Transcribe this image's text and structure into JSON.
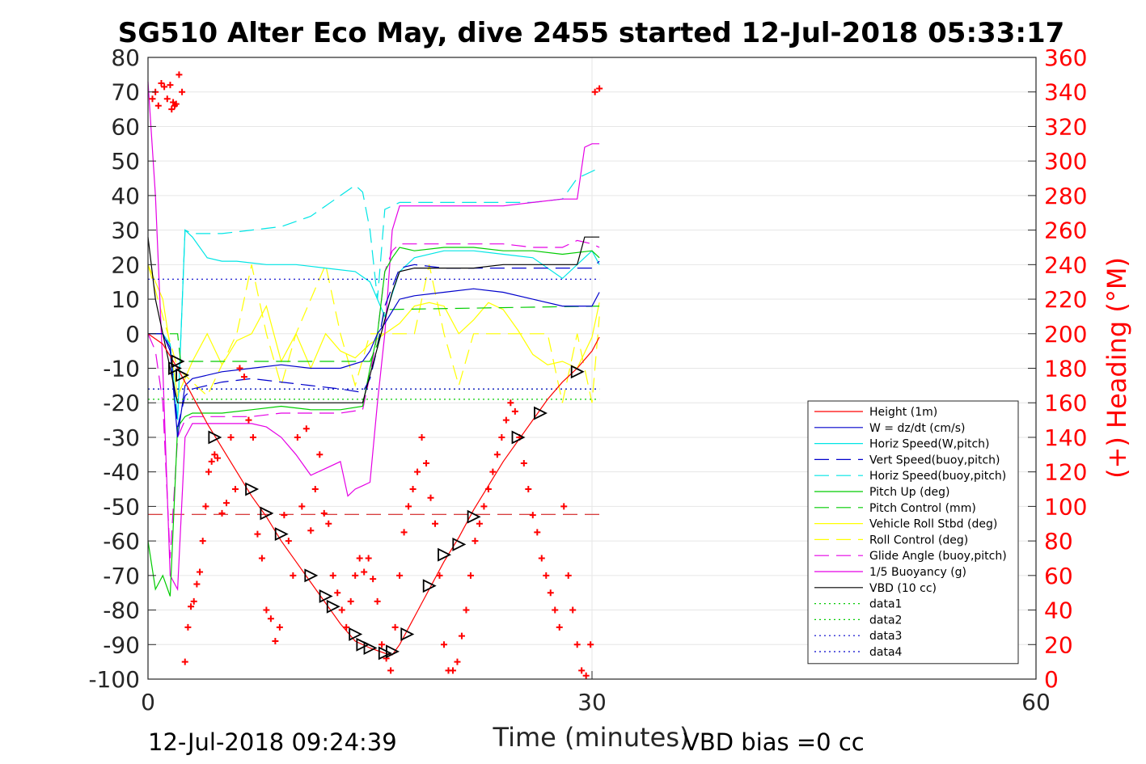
{
  "chart_data": {
    "type": "line",
    "title": "SG510 Alter Eco May, dive 2455 started 12-Jul-2018 05:33:17",
    "xlabel": "Time (minutes)",
    "ylabel_right": "(+) Heading (°M)",
    "xlim": [
      0,
      60
    ],
    "ylim": [
      -100,
      80
    ],
    "ylim_right": [
      0,
      360
    ],
    "xticks": [
      "0",
      "30",
      "60"
    ],
    "yticks": [
      "80",
      "70",
      "60",
      "50",
      "40",
      "30",
      "20",
      "10",
      "0",
      "-10",
      "-20",
      "-30",
      "-40",
      "-50",
      "-60",
      "-70",
      "-80",
      "-90",
      "-100"
    ],
    "yticks_right": [
      "360",
      "340",
      "320",
      "300",
      "280",
      "260",
      "240",
      "220",
      "200",
      "180",
      "160",
      "140",
      "120",
      "100",
      "80",
      "60",
      "40",
      "20",
      "0"
    ],
    "grid": true,
    "legend_position": "lower-right",
    "footer_left": "12-Jul-2018 09:24:39",
    "footer_right": "VBD bias =0 cc",
    "colors": {
      "red": "#ff0000",
      "blue": "#0000cc",
      "cyan": "#00e5e5",
      "green": "#00cc00",
      "yellow": "#ffff00",
      "magenta": "#e500e5",
      "black": "#000000",
      "axis_right": "#ff0000"
    },
    "series": [
      {
        "name": "Height (1m)",
        "color": "#ff0000",
        "dash": "solid",
        "x": [
          0,
          1,
          2,
          3,
          4,
          5,
          6,
          7,
          8,
          9,
          10,
          11,
          12,
          13,
          14,
          15,
          16,
          16.5,
          17,
          18,
          19,
          20,
          21,
          22,
          23,
          24,
          25,
          26,
          27,
          28,
          29,
          30,
          30.5
        ],
        "y": [
          0,
          -3,
          -10,
          -18,
          -26,
          -33,
          -40,
          -47,
          -53,
          -60,
          -66,
          -72,
          -78,
          -84,
          -89,
          -91,
          -92.5,
          -93,
          -90,
          -82,
          -74,
          -66,
          -59,
          -51,
          -44,
          -37,
          -31,
          -25,
          -19,
          -14,
          -10,
          -5,
          -1
        ]
      },
      {
        "name": "W = dz/dt (cm/s)",
        "color": "#0000cc",
        "dash": "solid",
        "x": [
          0,
          1,
          1.5,
          2,
          2.5,
          3,
          5,
          7,
          9,
          11,
          13,
          14.5,
          15,
          15.5,
          16,
          17,
          18,
          20,
          22,
          24,
          26,
          28,
          30,
          30.5
        ],
        "y": [
          0,
          0,
          -5,
          -30,
          -15,
          -13,
          -11,
          -10,
          -9,
          -10,
          -10,
          -8,
          -5,
          0,
          3,
          10,
          11,
          12,
          13,
          12,
          10,
          8,
          8,
          12
        ]
      },
      {
        "name": "Horiz Speed(W,pitch)",
        "color": "#00e5e5",
        "dash": "solid",
        "x": [
          0,
          1,
          1.5,
          2,
          2.5,
          3,
          4,
          5,
          6,
          8,
          10,
          12,
          14,
          15,
          15.5,
          16,
          17,
          18,
          20,
          22,
          24,
          26,
          28,
          30,
          30.5
        ],
        "y": [
          0,
          0,
          -3,
          -25,
          30,
          28,
          22,
          21,
          21,
          20,
          20,
          19,
          18,
          15,
          10,
          5,
          18,
          22,
          24,
          24,
          23,
          22,
          16,
          24,
          20
        ]
      },
      {
        "name": "Vert Speed(buoy,pitch)",
        "color": "#0000cc",
        "dash": "dash",
        "x": [
          0,
          1,
          1.5,
          2,
          2.5,
          3,
          5,
          7,
          9,
          11,
          13,
          14.5,
          15,
          15.5,
          16,
          17,
          18,
          20,
          22,
          24,
          26,
          28,
          30,
          30.5
        ],
        "y": [
          0,
          0,
          -4,
          -27,
          -18,
          -16,
          -14,
          -13,
          -14,
          -15,
          -16,
          -17,
          -13,
          -4,
          8,
          19,
          20,
          19,
          19,
          19,
          19,
          19,
          19,
          21
        ]
      },
      {
        "name": "Horiz Speed(buoy,pitch)",
        "color": "#00e5e5",
        "dash": "dash",
        "x": [
          0,
          1,
          1.5,
          2,
          2.5,
          3,
          5,
          7,
          9,
          11,
          12,
          13,
          14,
          14.5,
          15,
          15.5,
          16,
          17,
          18,
          20,
          22,
          24,
          26,
          28,
          29,
          30,
          30.5
        ],
        "y": [
          0,
          0,
          -3,
          -25,
          30,
          29,
          29,
          30,
          31,
          34,
          37,
          40,
          43,
          41,
          30,
          10,
          36,
          38,
          38,
          38,
          38,
          38,
          38,
          39,
          45,
          47,
          48
        ]
      },
      {
        "name": "Pitch Up (deg)",
        "color": "#00cc00",
        "dash": "solid",
        "x": [
          0,
          0.5,
          1,
          1.5,
          2,
          2.5,
          3,
          5,
          7,
          9,
          11,
          13,
          14.5,
          15,
          15.5,
          16,
          16.5,
          17,
          18,
          20,
          22,
          24,
          26,
          28,
          30,
          30.5
        ],
        "y": [
          -60,
          -74,
          -70,
          -76,
          -27,
          -24,
          -23,
          -23,
          -22,
          -21,
          -22,
          -22,
          -21,
          -10,
          0,
          18,
          22,
          25,
          24,
          25,
          25,
          24,
          24,
          23,
          24,
          22
        ]
      },
      {
        "name": "Pitch Control (mm)",
        "color": "#00cc00",
        "dash": "dash",
        "x": [
          0,
          2,
          2.2,
          15,
          15.5,
          16,
          30.5
        ],
        "y": [
          0,
          0,
          -8,
          -8,
          -3,
          7,
          8
        ]
      },
      {
        "name": "Vehicle Roll Stbd (deg)",
        "color": "#ffff00",
        "dash": "solid",
        "x": [
          0,
          1,
          2,
          3,
          4,
          5,
          6,
          7,
          8,
          9,
          10,
          11,
          12,
          13,
          14,
          15,
          16,
          17,
          18,
          19,
          20,
          21,
          22,
          23,
          24,
          25,
          26,
          27,
          28,
          29,
          30,
          30.5
        ],
        "y": [
          20,
          10,
          -18,
          -8,
          0,
          -9,
          -2,
          0,
          8,
          -8,
          0,
          -10,
          0,
          -5,
          -7,
          -3,
          0,
          3,
          8,
          9,
          8,
          0,
          4,
          9,
          7,
          1,
          -6,
          -9,
          -8,
          -10,
          -1,
          9
        ]
      },
      {
        "name": "Roll Control (deg)",
        "color": "#ffff00",
        "dash": "dash",
        "x": [
          0,
          2,
          4,
          6,
          7,
          8,
          9,
          10,
          12,
          13,
          14,
          15,
          16,
          18,
          19,
          20,
          21,
          22,
          24,
          25,
          26,
          27,
          28,
          29,
          30,
          30.5
        ],
        "y": [
          20,
          -10,
          -18,
          0,
          20,
          0,
          -15,
          0,
          20,
          0,
          -15,
          0,
          0,
          0,
          20,
          0,
          -15,
          0,
          0,
          0,
          0,
          0,
          -20,
          0,
          -20,
          5
        ]
      },
      {
        "name": "Glide Angle (buoy,pitch)",
        "color": "#e500e5",
        "dash": "dash",
        "x": [
          0,
          0.5,
          1,
          1.5,
          2,
          2.5,
          3,
          5,
          7,
          9,
          11,
          13,
          14.5,
          15,
          15.5,
          16,
          16.5,
          17,
          18,
          20,
          22,
          24,
          26,
          28,
          29,
          30,
          30.5
        ],
        "y": [
          0,
          -5,
          -20,
          -65,
          -30,
          -25,
          -24,
          -24,
          -24,
          -23,
          -23,
          -23,
          -22,
          -12,
          0,
          18,
          24,
          26,
          26,
          26,
          26,
          26,
          25,
          25,
          27,
          26,
          25
        ]
      },
      {
        "name": "1/5 Buoyancy (g)",
        "color": "#e500e5",
        "dash": "solid",
        "x": [
          0,
          0.5,
          1,
          1.5,
          2,
          2.5,
          3,
          5,
          7,
          8,
          9,
          10,
          11,
          12,
          13,
          13.5,
          14,
          14.5,
          15,
          15.5,
          16,
          16.5,
          17,
          18,
          20,
          22,
          24,
          26,
          28,
          29,
          29.5,
          30,
          30.5
        ],
        "y": [
          73,
          40,
          -10,
          -70,
          -74,
          -30,
          -26,
          -26,
          -26,
          -27,
          -30,
          -35,
          -41,
          -39,
          -37,
          -47,
          -45,
          -44,
          -43,
          -20,
          0,
          30,
          37,
          37,
          37,
          37,
          37,
          38,
          39,
          39,
          54,
          55,
          55
        ]
      },
      {
        "name": "VBD (10 cc)",
        "color": "#000000",
        "dash": "solid",
        "x": [
          0,
          0.5,
          1,
          1.5,
          2,
          2.5,
          3,
          5,
          10,
          14.5,
          15,
          15.5,
          16,
          16.5,
          17,
          18,
          20,
          22,
          24,
          26,
          28,
          29,
          29.5,
          30.5
        ],
        "y": [
          28,
          10,
          0,
          -10,
          -20,
          -20,
          -20,
          -20,
          -20,
          -20,
          -12,
          -4,
          4,
          12,
          18,
          19,
          19,
          19,
          20,
          20,
          20,
          20,
          28,
          28
        ]
      },
      {
        "name": "data1",
        "color": "#00cc00",
        "dash": "dot",
        "x": [
          0,
          30.5
        ],
        "y": [
          -19,
          -19
        ]
      },
      {
        "name": "data2",
        "color": "#00cc00",
        "dash": "dot",
        "x": [
          0,
          30.5
        ],
        "y": [
          -16,
          -16
        ]
      },
      {
        "name": "data3",
        "color": "#0000cc",
        "dash": "dot",
        "x": [
          0,
          30.5
        ],
        "y": [
          15.8,
          15.8
        ]
      },
      {
        "name": "data4",
        "color": "#0000cc",
        "dash": "dot",
        "x": [
          0,
          30.5
        ],
        "y": [
          -16,
          -16
        ]
      }
    ],
    "reference_line": {
      "color": "#cc0000",
      "dash": "dash",
      "y": -52.3,
      "x": [
        0,
        30.5
      ]
    },
    "heading_points": {
      "color": "#ff0000",
      "axis": "right",
      "x": [
        0.3,
        0.5,
        0.7,
        0.9,
        1.1,
        1.3,
        1.5,
        1.6,
        1.7,
        1.8,
        1.9,
        2.1,
        2.3,
        2.5,
        2.7,
        2.9,
        3.1,
        3.3,
        3.5,
        3.7,
        3.9,
        4.1,
        4.3,
        4.5,
        4.7,
        5.0,
        5.3,
        5.6,
        5.9,
        6.2,
        6.5,
        6.8,
        7.1,
        7.4,
        7.7,
        8.0,
        8.3,
        8.6,
        8.9,
        9.2,
        9.5,
        9.8,
        10.1,
        10.4,
        10.7,
        11.0,
        11.3,
        11.6,
        11.9,
        12.2,
        12.5,
        12.8,
        13.1,
        13.4,
        13.7,
        14.0,
        14.3,
        14.6,
        14.9,
        15.2,
        15.5,
        15.8,
        16.1,
        16.4,
        16.7,
        17.0,
        17.3,
        17.6,
        17.9,
        18.2,
        18.5,
        18.8,
        19.1,
        19.4,
        19.7,
        20.0,
        20.3,
        20.6,
        20.9,
        21.2,
        21.5,
        21.8,
        22.1,
        22.4,
        22.7,
        23.0,
        23.3,
        23.6,
        23.9,
        24.2,
        24.5,
        24.8,
        25.1,
        25.4,
        25.7,
        26.0,
        26.3,
        26.6,
        26.9,
        27.2,
        27.5,
        27.8,
        28.1,
        28.4,
        28.7,
        29.0,
        29.3,
        29.6,
        29.9,
        30.2,
        30.5
      ],
      "y": [
        336,
        340,
        332,
        345,
        343,
        336,
        344,
        330,
        334,
        332,
        333,
        350,
        340,
        10,
        30,
        42,
        45,
        55,
        62,
        80,
        100,
        120,
        126,
        130,
        128,
        96,
        102,
        140,
        110,
        180,
        175,
        150,
        140,
        84,
        70,
        40,
        35,
        22,
        30,
        95,
        80,
        60,
        140,
        100,
        145,
        86,
        110,
        130,
        96,
        90,
        60,
        50,
        40,
        30,
        45,
        60,
        70,
        62,
        70,
        58,
        45,
        20,
        12,
        5,
        30,
        60,
        85,
        100,
        110,
        120,
        140,
        125,
        105,
        90,
        60,
        20,
        5,
        5,
        10,
        25,
        40,
        60,
        80,
        90,
        100,
        110,
        120,
        130,
        140,
        150,
        160,
        155,
        140,
        125,
        110,
        95,
        85,
        70,
        60,
        50,
        40,
        30,
        100,
        60,
        40,
        20,
        5,
        2,
        20,
        340,
        342
      ]
    },
    "markers": {
      "color": "#000000",
      "shape": "triangle",
      "x": [
        1.8,
        2.0,
        2.3,
        4.5,
        7.0,
        8.0,
        9.0,
        11.0,
        12.0,
        12.5,
        14.0,
        14.5,
        15.0,
        16.0,
        16.5,
        17.5,
        19.0,
        20.0,
        21.0,
        22.0,
        25.0,
        26.5,
        29.0
      ],
      "y": [
        -10,
        -8,
        -12,
        -30,
        -45,
        -52,
        -58,
        -70,
        -76,
        -79,
        -87,
        -90,
        -91,
        -92.5,
        -92,
        -87,
        -73,
        -64,
        -61,
        -53,
        -30,
        -23,
        -11
      ]
    }
  }
}
